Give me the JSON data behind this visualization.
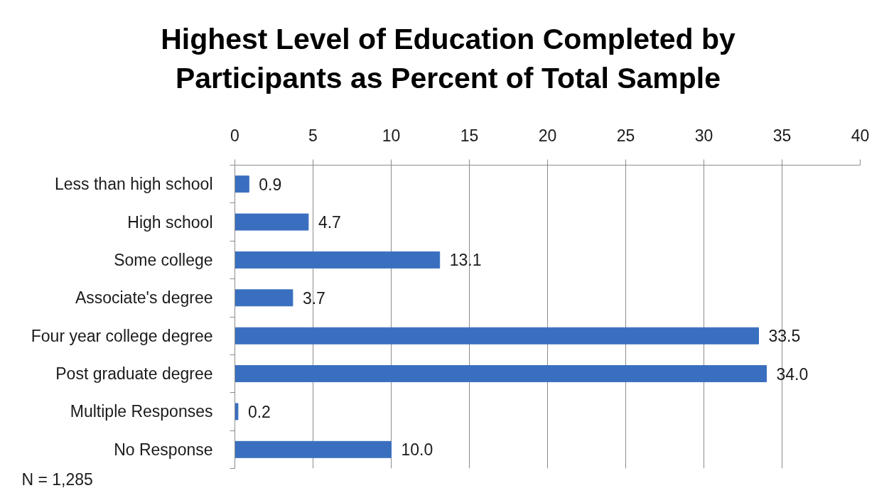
{
  "chart_data": {
    "type": "bar",
    "orientation": "horizontal",
    "title": "Highest Level of Education Completed by Participants as Percent of Total Sample",
    "categories": [
      "Less than high school",
      "High school",
      "Some college",
      "Associate's degree",
      "Four year college degree",
      "Post graduate degree",
      "Multiple Responses",
      "No Response"
    ],
    "values": [
      0.9,
      4.7,
      13.1,
      3.7,
      33.5,
      34.0,
      0.2,
      10.0
    ],
    "value_labels": [
      "0.9",
      "4.7",
      "13.1",
      "3.7",
      "33.5",
      "34.0",
      "0.2",
      "10.0"
    ],
    "color": "#3a6fbf",
    "xlim": [
      0,
      40
    ],
    "xticks": [
      0,
      5,
      10,
      15,
      20,
      25,
      30,
      35,
      40
    ],
    "grid": "x",
    "annotations": [
      "N = 1,285"
    ]
  }
}
